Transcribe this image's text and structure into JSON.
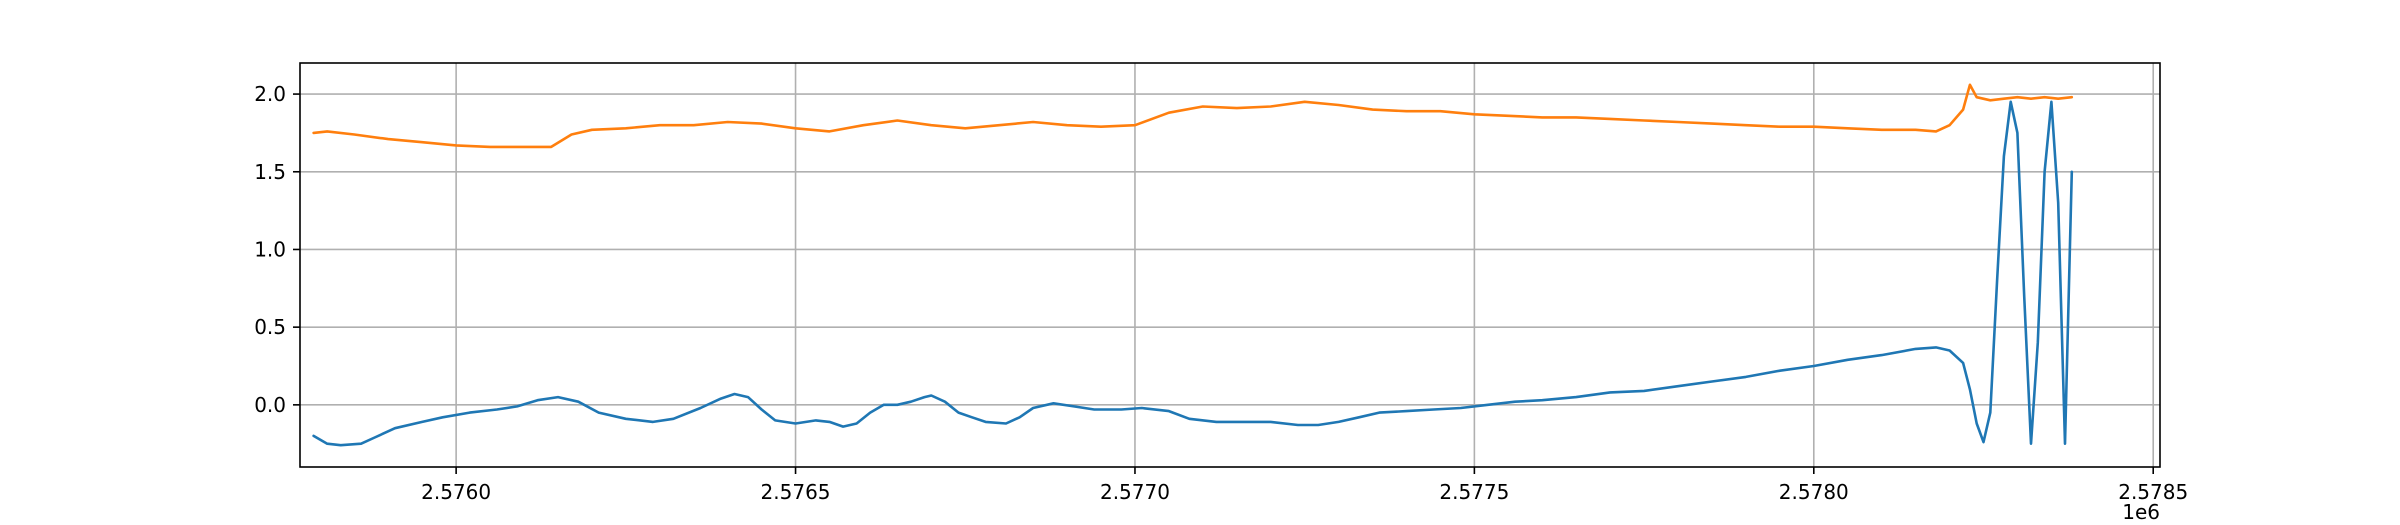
{
  "chart_data": {
    "type": "line",
    "title": "",
    "xlabel": "",
    "ylabel": "",
    "x_offset_label": "1e6",
    "xlim": [
      2.57577,
      2.57851
    ],
    "ylim": [
      -0.4,
      2.2
    ],
    "grid": true,
    "x_ticks": [
      2.576,
      2.5765,
      2.577,
      2.5775,
      2.578,
      2.5785
    ],
    "x_tick_labels": [
      "2.5760",
      "2.5765",
      "2.5770",
      "2.5775",
      "2.5780",
      "2.5785"
    ],
    "y_ticks": [
      0.0,
      0.5,
      1.0,
      1.5,
      2.0
    ],
    "y_tick_labels": [
      "0.0",
      "0.5",
      "1.0",
      "1.5",
      "2.0"
    ],
    "series": [
      {
        "color": "#1f77b4",
        "points": [
          [
            2.57579,
            -0.2
          ],
          [
            2.57581,
            -0.25
          ],
          [
            2.57583,
            -0.26
          ],
          [
            2.57586,
            -0.25
          ],
          [
            2.57588,
            -0.21
          ],
          [
            2.57591,
            -0.15
          ],
          [
            2.57595,
            -0.11
          ],
          [
            2.57598,
            -0.08
          ],
          [
            2.57602,
            -0.05
          ],
          [
            2.57606,
            -0.03
          ],
          [
            2.57609,
            -0.01
          ],
          [
            2.57612,
            0.03
          ],
          [
            2.57615,
            0.05
          ],
          [
            2.57618,
            0.02
          ],
          [
            2.57621,
            -0.05
          ],
          [
            2.57625,
            -0.09
          ],
          [
            2.57629,
            -0.11
          ],
          [
            2.57632,
            -0.09
          ],
          [
            2.57636,
            -0.02
          ],
          [
            2.57639,
            0.04
          ],
          [
            2.57641,
            0.07
          ],
          [
            2.57643,
            0.05
          ],
          [
            2.57645,
            -0.03
          ],
          [
            2.57647,
            -0.1
          ],
          [
            2.5765,
            -0.12
          ],
          [
            2.57653,
            -0.1
          ],
          [
            2.57655,
            -0.11
          ],
          [
            2.57657,
            -0.14
          ],
          [
            2.57659,
            -0.12
          ],
          [
            2.57661,
            -0.05
          ],
          [
            2.57663,
            0.0
          ],
          [
            2.57665,
            0.0
          ],
          [
            2.57667,
            0.02
          ],
          [
            2.57669,
            0.05
          ],
          [
            2.5767,
            0.06
          ],
          [
            2.57672,
            0.02
          ],
          [
            2.57674,
            -0.05
          ],
          [
            2.57676,
            -0.08
          ],
          [
            2.57678,
            -0.11
          ],
          [
            2.57681,
            -0.12
          ],
          [
            2.57683,
            -0.08
          ],
          [
            2.57685,
            -0.02
          ],
          [
            2.57688,
            0.01
          ],
          [
            2.57691,
            -0.01
          ],
          [
            2.57694,
            -0.03
          ],
          [
            2.57698,
            -0.03
          ],
          [
            2.57701,
            -0.02
          ],
          [
            2.57705,
            -0.04
          ],
          [
            2.57708,
            -0.09
          ],
          [
            2.57712,
            -0.11
          ],
          [
            2.57716,
            -0.11
          ],
          [
            2.5772,
            -0.11
          ],
          [
            2.57724,
            -0.13
          ],
          [
            2.57727,
            -0.13
          ],
          [
            2.5773,
            -0.11
          ],
          [
            2.57733,
            -0.08
          ],
          [
            2.57736,
            -0.05
          ],
          [
            2.5774,
            -0.04
          ],
          [
            2.57744,
            -0.03
          ],
          [
            2.57748,
            -0.02
          ],
          [
            2.57752,
            0.0
          ],
          [
            2.57756,
            0.02
          ],
          [
            2.5776,
            0.03
          ],
          [
            2.57765,
            0.05
          ],
          [
            2.5777,
            0.08
          ],
          [
            2.57775,
            0.09
          ],
          [
            2.5778,
            0.12
          ],
          [
            2.57785,
            0.15
          ],
          [
            2.5779,
            0.18
          ],
          [
            2.57795,
            0.22
          ],
          [
            2.578,
            0.25
          ],
          [
            2.57805,
            0.29
          ],
          [
            2.5781,
            0.32
          ],
          [
            2.57815,
            0.36
          ],
          [
            2.57818,
            0.37
          ],
          [
            2.5782,
            0.35
          ],
          [
            2.57822,
            0.27
          ],
          [
            2.57823,
            0.1
          ],
          [
            2.57824,
            -0.12
          ],
          [
            2.57825,
            -0.24
          ],
          [
            2.57826,
            -0.05
          ],
          [
            2.57827,
            0.8
          ],
          [
            2.57828,
            1.6
          ],
          [
            2.57829,
            1.95
          ],
          [
            2.5783,
            1.75
          ],
          [
            2.57831,
            0.7
          ],
          [
            2.57832,
            -0.25
          ],
          [
            2.57833,
            0.4
          ],
          [
            2.57834,
            1.5
          ],
          [
            2.57835,
            1.95
          ],
          [
            2.57836,
            1.3
          ],
          [
            2.57837,
            -0.25
          ],
          [
            2.57838,
            1.5
          ]
        ]
      },
      {
        "color": "#ff7f0e",
        "points": [
          [
            2.57579,
            1.75
          ],
          [
            2.57581,
            1.76
          ],
          [
            2.57585,
            1.74
          ],
          [
            2.5759,
            1.71
          ],
          [
            2.57595,
            1.69
          ],
          [
            2.576,
            1.67
          ],
          [
            2.57605,
            1.66
          ],
          [
            2.5761,
            1.66
          ],
          [
            2.57614,
            1.66
          ],
          [
            2.57617,
            1.74
          ],
          [
            2.5762,
            1.77
          ],
          [
            2.57625,
            1.78
          ],
          [
            2.5763,
            1.8
          ],
          [
            2.57635,
            1.8
          ],
          [
            2.5764,
            1.82
          ],
          [
            2.57645,
            1.81
          ],
          [
            2.5765,
            1.78
          ],
          [
            2.57655,
            1.76
          ],
          [
            2.5766,
            1.8
          ],
          [
            2.57665,
            1.83
          ],
          [
            2.5767,
            1.8
          ],
          [
            2.57675,
            1.78
          ],
          [
            2.5768,
            1.8
          ],
          [
            2.57685,
            1.82
          ],
          [
            2.5769,
            1.8
          ],
          [
            2.57695,
            1.79
          ],
          [
            2.577,
            1.8
          ],
          [
            2.57705,
            1.88
          ],
          [
            2.5771,
            1.92
          ],
          [
            2.57715,
            1.91
          ],
          [
            2.5772,
            1.92
          ],
          [
            2.57725,
            1.95
          ],
          [
            2.5773,
            1.93
          ],
          [
            2.57735,
            1.9
          ],
          [
            2.5774,
            1.89
          ],
          [
            2.57745,
            1.89
          ],
          [
            2.5775,
            1.87
          ],
          [
            2.57755,
            1.86
          ],
          [
            2.5776,
            1.85
          ],
          [
            2.57765,
            1.85
          ],
          [
            2.5777,
            1.84
          ],
          [
            2.57775,
            1.83
          ],
          [
            2.5778,
            1.82
          ],
          [
            2.57785,
            1.81
          ],
          [
            2.5779,
            1.8
          ],
          [
            2.57795,
            1.79
          ],
          [
            2.578,
            1.79
          ],
          [
            2.57805,
            1.78
          ],
          [
            2.5781,
            1.77
          ],
          [
            2.57815,
            1.77
          ],
          [
            2.57818,
            1.76
          ],
          [
            2.5782,
            1.8
          ],
          [
            2.57822,
            1.9
          ],
          [
            2.57823,
            2.06
          ],
          [
            2.57824,
            1.98
          ],
          [
            2.57826,
            1.96
          ],
          [
            2.57828,
            1.97
          ],
          [
            2.5783,
            1.98
          ],
          [
            2.57832,
            1.97
          ],
          [
            2.57834,
            1.98
          ],
          [
            2.57836,
            1.97
          ],
          [
            2.57838,
            1.98
          ]
        ]
      }
    ]
  }
}
